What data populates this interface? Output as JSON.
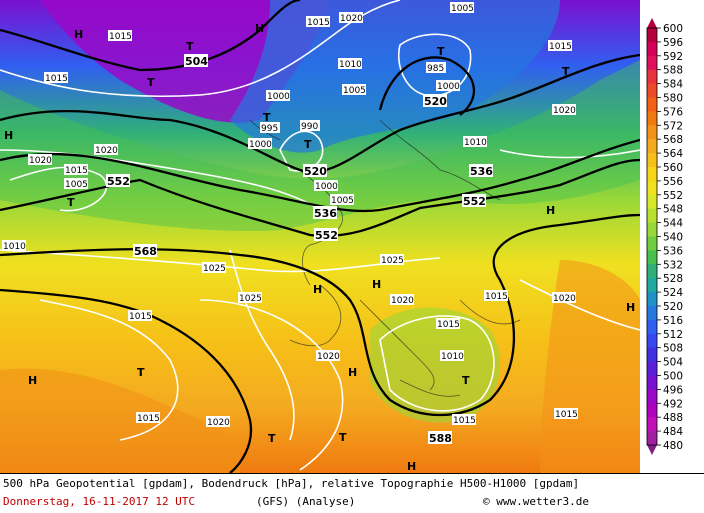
{
  "map": {
    "isobar_labels": [
      "1015",
      "1020",
      "1010",
      "1005",
      "1000",
      "995",
      "985",
      "1025",
      "990"
    ],
    "geopotential_labels": [
      "504",
      "520",
      "536",
      "552",
      "568",
      "588"
    ],
    "high_symbol": "H",
    "low_symbol": "T"
  },
  "legend": {
    "values": [
      "600",
      "596",
      "592",
      "588",
      "584",
      "580",
      "576",
      "572",
      "568",
      "564",
      "560",
      "556",
      "552",
      "548",
      "544",
      "540",
      "536",
      "532",
      "528",
      "524",
      "520",
      "516",
      "512",
      "508",
      "504",
      "500",
      "496",
      "492",
      "488",
      "484",
      "480"
    ],
    "colors": [
      "#b4003c",
      "#d4005a",
      "#e0105e",
      "#e8343c",
      "#ec4a28",
      "#f06018",
      "#f07a10",
      "#f29218",
      "#f4aa20",
      "#f6c018",
      "#f8d418",
      "#f0e020",
      "#d8e828",
      "#b8e030",
      "#98d838",
      "#70cc40",
      "#48c050",
      "#30b078",
      "#20a8a0",
      "#2090c8",
      "#2478e0",
      "#3060f0",
      "#3848f0",
      "#4030e0",
      "#5a20d8",
      "#7a10d0",
      "#9a08c8",
      "#b000c0",
      "#c010b8",
      "#a020a0",
      "#802080"
    ]
  },
  "caption": {
    "line1": "500 hPa Geopotential [gpdam], Bodendruck [hPa], relative Topographie H500-H1000 [gpdam]",
    "date": "Donnerstag, 16-11-2017  12 UTC",
    "model": "(GFS)  (Analyse)",
    "copyright": "© www.wetter3.de"
  }
}
